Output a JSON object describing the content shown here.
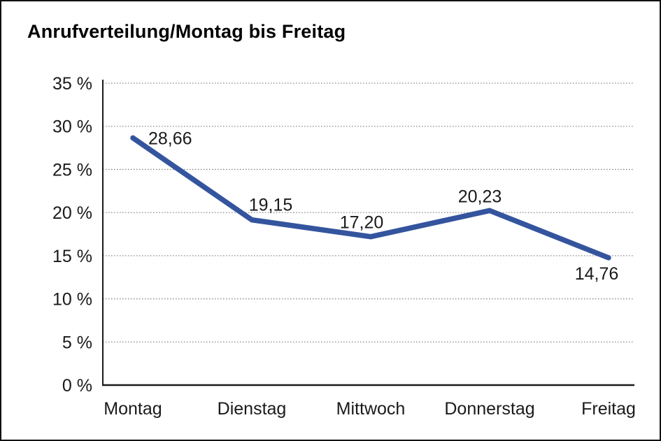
{
  "page": {
    "title": "Anrufverteilung/Montag bis Freitag"
  },
  "chart_data": {
    "type": "line",
    "title": "Anrufverteilung/Montag bis Freitag",
    "categories": [
      "Montag",
      "Dienstag",
      "Mittwoch",
      "Donnerstag",
      "Freitag"
    ],
    "series": [
      {
        "name": "Anrufverteilung",
        "values": [
          28.66,
          19.15,
          17.2,
          20.23,
          14.76
        ]
      }
    ],
    "point_labels": [
      "28,66",
      "19,15",
      "17,20",
      "20,23",
      "14,76"
    ],
    "xlabel": "",
    "ylabel": "",
    "ylim": [
      0,
      35
    ],
    "ytick_step": 5,
    "ytick_labels": [
      "0 %",
      "5 %",
      "10 %",
      "15 %",
      "20 %",
      "25 %",
      "30 %",
      "35 %"
    ],
    "grid": "horizontal-dotted",
    "legend": "none",
    "colors": {
      "line": "#34549E",
      "grid": "#858585",
      "axis": "#1a1a1a",
      "text": "#1a1a1a",
      "background": "#ffffff",
      "border": "#111111"
    }
  }
}
